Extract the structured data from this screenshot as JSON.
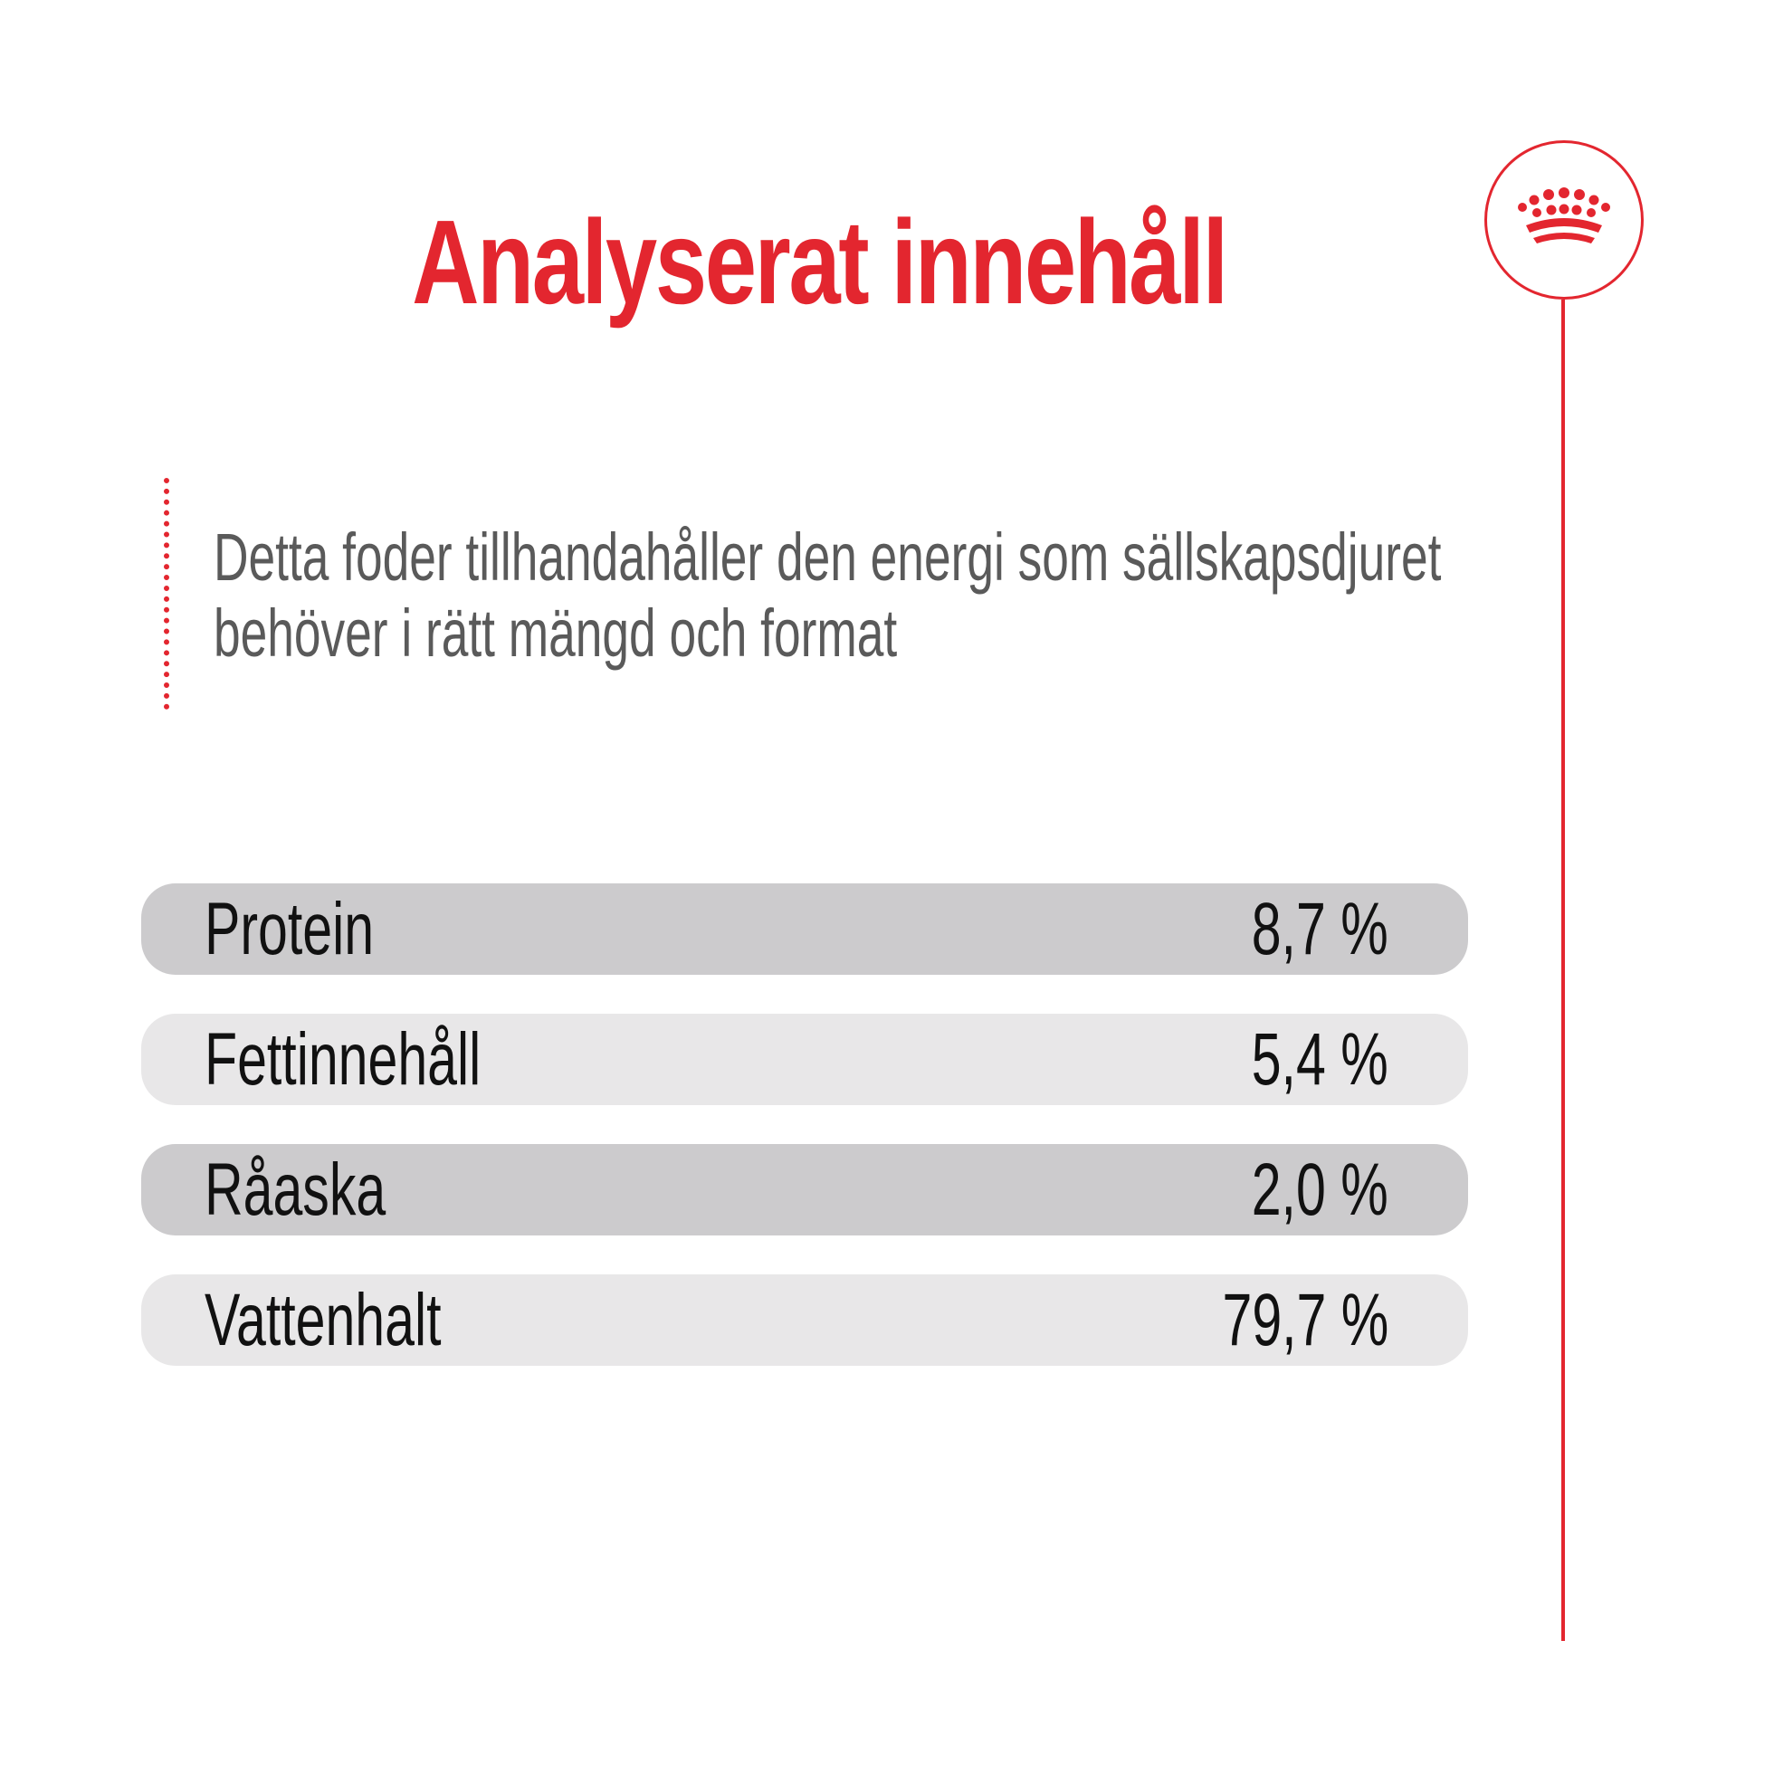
{
  "title": "Analyserat innehåll",
  "description": {
    "line1": "Detta foder tillhandahåller den energi som sällskapsdjuret",
    "line2": "behöver i rätt mängd och format"
  },
  "nutrients": [
    {
      "name": "Protein",
      "value": "8,7 %"
    },
    {
      "name": "Fettinnehåll",
      "value": "5,4 %"
    },
    {
      "name": "Råaska",
      "value": "2,0 %"
    },
    {
      "name": "Vattenhalt",
      "value": "79,7 %"
    }
  ],
  "logo_icon": "crown-icon",
  "colors": {
    "brand_red": "#e3262f",
    "body_text": "#5a5a5a",
    "label_text": "#111111",
    "row_dark": "#cccbcd",
    "row_light": "#e8e7e8",
    "background": "#ffffff"
  }
}
